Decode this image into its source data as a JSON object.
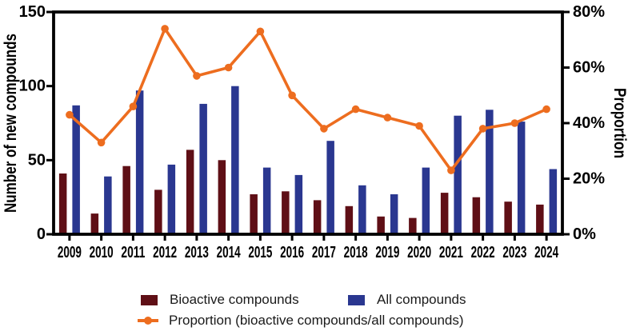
{
  "chart_data": {
    "type": "bar+line",
    "categories": [
      "2009",
      "2010",
      "2011",
      "2012",
      "2013",
      "2014",
      "2015",
      "2016",
      "2017",
      "2018",
      "2019",
      "2020",
      "2021",
      "2022",
      "2023",
      "2024"
    ],
    "series": [
      {
        "name": "Bioactive compounds",
        "type": "bar",
        "axis": "left",
        "color": "#5F0F16",
        "values": [
          41,
          14,
          46,
          30,
          57,
          50,
          27,
          29,
          23,
          19,
          12,
          11,
          28,
          25,
          22,
          20
        ]
      },
      {
        "name": "All compounds",
        "type": "bar",
        "axis": "left",
        "color": "#2A3790",
        "values": [
          87,
          39,
          97,
          47,
          88,
          100,
          45,
          40,
          63,
          33,
          27,
          45,
          80,
          84,
          76,
          44
        ]
      },
      {
        "name": "Proportion (bioactive compounds/all compounds)",
        "type": "line",
        "axis": "right",
        "color": "#ED6D1F",
        "values": [
          43,
          33,
          46,
          74,
          57,
          60,
          73,
          50,
          38,
          45,
          42,
          39,
          23,
          38,
          40,
          45
        ]
      }
    ],
    "left_axis": {
      "label": "Number of new compounds",
      "min": 0,
      "max": 150,
      "tick_values": [
        0,
        50,
        100,
        150
      ],
      "tick_labels": [
        "0",
        "50",
        "100",
        "150"
      ]
    },
    "right_axis": {
      "label": "Proportion",
      "min": 0,
      "max": 80,
      "unit": "%",
      "tick_values": [
        0,
        20,
        40,
        60,
        80
      ],
      "tick_labels": [
        "0%",
        "20%",
        "40%",
        "60%",
        "80%"
      ]
    },
    "grid": false,
    "legend_position": "bottom"
  },
  "legend": {
    "bioactive_label": "Bioactive compounds",
    "all_label": "All compounds",
    "proportion_label": "Proportion (bioactive compounds/all compounds)"
  },
  "colors": {
    "bioactive": "#5F0F16",
    "all": "#2A3790",
    "proportion": "#ED6D1F",
    "axis": "#000000",
    "background": "#FFFFFF"
  }
}
